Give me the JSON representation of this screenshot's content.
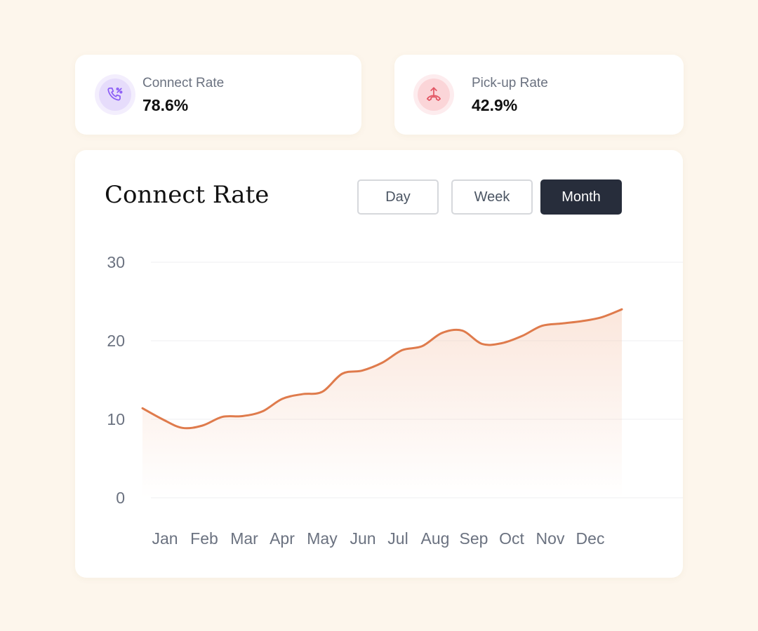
{
  "stats": [
    {
      "label": "Connect Rate",
      "value": "78.6%",
      "icon": "phone-percent-icon",
      "icon_color": "#8b5cf6",
      "icon_bg": "#e6dcfb",
      "icon_ring": "#f3eefd"
    },
    {
      "label": "Pick-up Rate",
      "value": "42.9%",
      "icon": "phone-pickup-icon",
      "icon_color": "#e25563",
      "icon_bg": "#fbd5d8",
      "icon_ring": "#fdecee"
    }
  ],
  "chart_card": {
    "title": "Connect Rate",
    "periods": [
      "Day",
      "Week",
      "Month"
    ],
    "selected_period": "Month"
  },
  "chart_data": {
    "type": "area",
    "title": "Connect Rate",
    "categories": [
      "Jan",
      "Feb",
      "Mar",
      "Apr",
      "May",
      "Jun",
      "Jul",
      "Aug",
      "Sep",
      "Oct",
      "Nov",
      "Dec"
    ],
    "yticks": [
      0,
      10,
      20,
      30
    ],
    "ylim": [
      0,
      30
    ],
    "grid": true,
    "line_color": "#df7b4c",
    "fill_color": "#f5c9b2",
    "series": [
      {
        "x": [
          0,
          0.5,
          1,
          1.5,
          2,
          2.5,
          3,
          3.5,
          4,
          4.5,
          5,
          5.5,
          6,
          6.5,
          7,
          7.5,
          8,
          8.5,
          9,
          9.5,
          10,
          10.5,
          11,
          11.5,
          12
        ],
        "values": [
          11.4,
          10.0,
          8.9,
          9.2,
          10.3,
          10.4,
          11.0,
          12.6,
          13.2,
          13.5,
          15.8,
          16.2,
          17.2,
          18.8,
          19.3,
          21.0,
          21.3,
          19.6,
          19.7,
          20.6,
          21.9,
          22.2,
          22.5,
          23.0,
          24.0
        ]
      }
    ]
  }
}
